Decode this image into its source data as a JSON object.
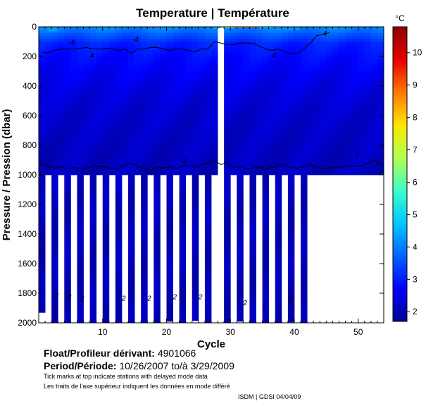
{
  "chart_data": {
    "type": "heatmap",
    "title": "Temperature | Température",
    "xlabel": "Cycle",
    "ylabel": "Pressure / Pression (dbar)",
    "colorbar_unit": "°C",
    "xlim": [
      0,
      54
    ],
    "ylim": [
      2000,
      0
    ],
    "x_ticks": [
      10,
      20,
      30,
      40,
      50
    ],
    "y_ticks": [
      0,
      200,
      400,
      600,
      800,
      1000,
      1200,
      1400,
      1600,
      1800,
      2000
    ],
    "colorbar_range": [
      1.7,
      10.8
    ],
    "colorbar_ticks": [
      2,
      3,
      4,
      5,
      6,
      7,
      8,
      9,
      10
    ],
    "colormap": [
      "#00008c",
      "#0000ff",
      "#0064ff",
      "#00c8ff",
      "#3cffc8",
      "#b4ff50",
      "#ffe600",
      "#ff7800",
      "#e60000",
      "#8c0000"
    ],
    "deep_profile_cycles": [
      1,
      3,
      5,
      7,
      9,
      11,
      13,
      15,
      17,
      19,
      21,
      23,
      25,
      27,
      30,
      32,
      34,
      36,
      38,
      40,
      42
    ],
    "deep_profile_max_depth": [
      1930,
      2000,
      2000,
      2000,
      2000,
      2000,
      2000,
      2000,
      2000,
      2000,
      1990,
      2000,
      1985,
      2000,
      2000,
      1990,
      2000,
      2000,
      2000,
      1995,
      2000
    ],
    "shallow_profile_max_depth": 1000,
    "missing_cycle": 29,
    "contour_labels": [
      "2",
      "3",
      "4"
    ],
    "isotherm_3C_depths": [
      930,
      940,
      955,
      945,
      960,
      950,
      960,
      955,
      940,
      945,
      950,
      960,
      955,
      935,
      920,
      945,
      960,
      965,
      950,
      955,
      945,
      960,
      940,
      935,
      950,
      930,
      925,
      905,
      930,
      920,
      950,
      945,
      960,
      955,
      945,
      960,
      950,
      940,
      930,
      950,
      955,
      945,
      930,
      950,
      960,
      955,
      945,
      950,
      935,
      945,
      940,
      920,
      900,
      935
    ]
  },
  "info": {
    "float_label": "Float/Profileur dérivant:",
    "float_id": "4901066",
    "period_label": "Period/Période:",
    "period_start": "10/26/2007",
    "period_sep": "to/à",
    "period_end": "3/29/2009",
    "note_en": "Tick marks at top indicate stations with delayed mode data",
    "note_fr": "Les traits de l'axe supérieur indiquent les données en mode différé",
    "footer": "ISDM | GDSI 04/04/09"
  }
}
